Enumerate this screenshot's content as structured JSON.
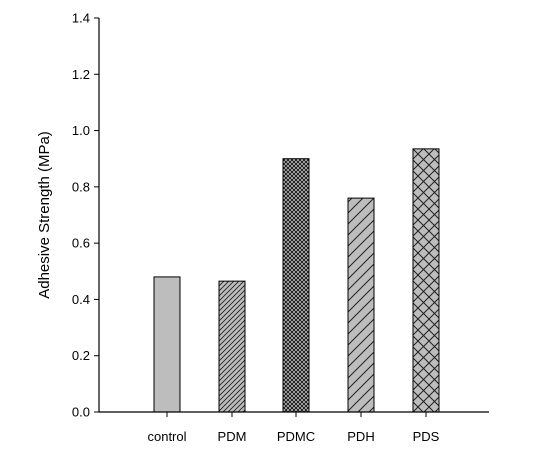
{
  "chart_data": {
    "type": "bar",
    "title": "",
    "xlabel": "",
    "ylabel": "Adhesive Strength (MPa)",
    "ylim": [
      0,
      1.4
    ],
    "yticks": [
      "0.0",
      "0.2",
      "0.4",
      "0.6",
      "0.8",
      "1.0",
      "1.2",
      "1.4"
    ],
    "grid": false,
    "categories": [
      "control",
      "PDM",
      "PDMC",
      "PDH",
      "PDS"
    ],
    "values": [
      0.48,
      0.465,
      0.9,
      0.76,
      0.935
    ],
    "bar_styles": [
      {
        "fill": "#bdbdbd",
        "pattern": "solid"
      },
      {
        "fill": "#bdbdbd",
        "pattern": "fine-diagonal-hatch"
      },
      {
        "fill": "#bdbdbd",
        "pattern": "dense-crosshatch"
      },
      {
        "fill": "#bdbdbd",
        "pattern": "wide-diagonal-hatch"
      },
      {
        "fill": "#bdbdbd",
        "pattern": "wide-crosshatch"
      }
    ]
  }
}
